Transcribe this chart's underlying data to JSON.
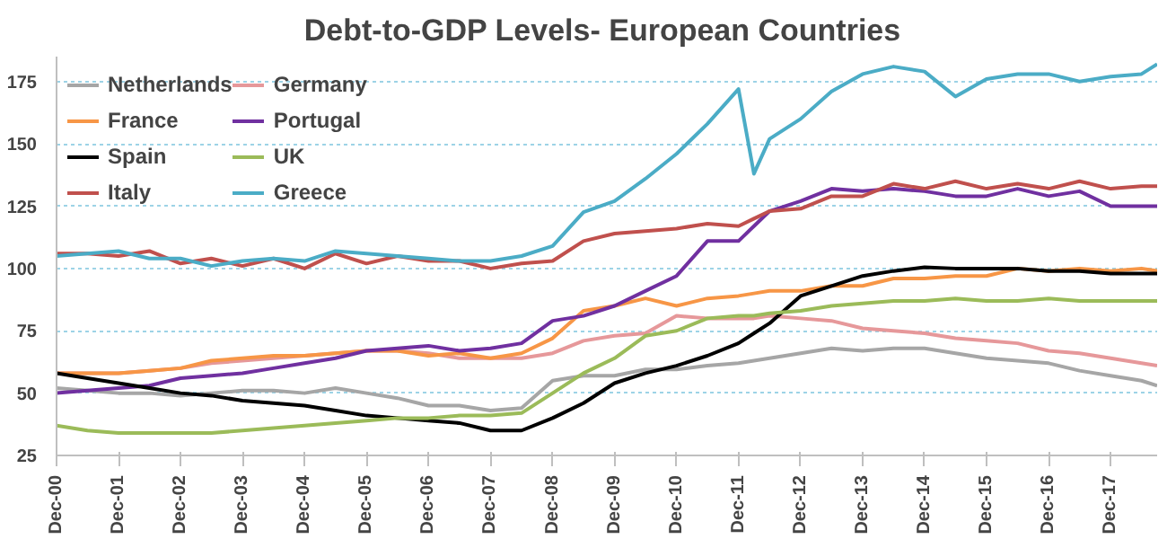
{
  "chart_data": {
    "type": "line",
    "title": "Debt-to-GDP  Levels- European Countries",
    "x": [
      "2000-12",
      "2001-06",
      "2001-12",
      "2002-06",
      "2002-12",
      "2003-06",
      "2003-12",
      "2004-06",
      "2004-12",
      "2005-06",
      "2005-12",
      "2006-06",
      "2006-12",
      "2007-06",
      "2007-12",
      "2008-06",
      "2008-12",
      "2009-06",
      "2009-12",
      "2010-06",
      "2010-12",
      "2011-06",
      "2011-12",
      "2012-03",
      "2012-06",
      "2012-12",
      "2013-06",
      "2013-12",
      "2014-06",
      "2014-12",
      "2015-06",
      "2015-12",
      "2016-06",
      "2016-12",
      "2017-06",
      "2017-12",
      "2018-06",
      "2018-09"
    ],
    "series": [
      {
        "name": "Netherlands",
        "color": "#a6a6a6",
        "values": [
          52,
          51,
          50,
          50,
          49,
          50,
          51,
          51,
          50,
          52,
          50,
          48,
          45,
          45,
          43,
          44,
          55,
          57,
          57,
          59.5,
          59.5,
          61,
          62,
          63,
          64,
          66,
          68,
          67,
          68,
          68,
          66,
          64,
          63,
          62,
          59,
          57,
          55,
          53
        ]
      },
      {
        "name": "Germany",
        "color": "#e6989a",
        "values": [
          58,
          58,
          58,
          59,
          60,
          62,
          63,
          64,
          65,
          66,
          67,
          67,
          66,
          64,
          64,
          64,
          66,
          71,
          73,
          74,
          81,
          80,
          80,
          80,
          81,
          80,
          79,
          76,
          75,
          74,
          72,
          71,
          70,
          67,
          66,
          64,
          62,
          61
        ]
      },
      {
        "name": "France",
        "color": "#f79646",
        "values": [
          58,
          58,
          58,
          59,
          60,
          63,
          64,
          65,
          65,
          66,
          67,
          67,
          65,
          66,
          64,
          66,
          72,
          83,
          85,
          88,
          85,
          88,
          89,
          90,
          91,
          91,
          93,
          93,
          96,
          96,
          97,
          97,
          100,
          99,
          100,
          99,
          100,
          99
        ]
      },
      {
        "name": "Portugal",
        "color": "#7030a0",
        "values": [
          50,
          51,
          52,
          53,
          56,
          57,
          58,
          60,
          62,
          64,
          67,
          68,
          69,
          67,
          68,
          70,
          79,
          81,
          85,
          91,
          97,
          111,
          111,
          117,
          123,
          127,
          132,
          131,
          132,
          131,
          129,
          129,
          132,
          129,
          131,
          125,
          125,
          125
        ]
      },
      {
        "name": "Spain",
        "color": "#000000",
        "values": [
          58,
          56,
          54,
          52,
          50,
          49,
          47,
          46,
          45,
          43,
          41,
          40,
          39,
          38,
          35,
          35,
          40,
          46,
          54,
          58,
          61,
          65,
          70,
          74,
          78,
          89,
          93,
          97,
          99,
          100.5,
          100,
          100,
          100,
          99,
          99,
          98,
          98,
          98
        ]
      },
      {
        "name": "UK",
        "color": "#9bbb59",
        "values": [
          37,
          35,
          34,
          34,
          34,
          34,
          35,
          36,
          37,
          38,
          39,
          40,
          40,
          41,
          41,
          42,
          50,
          58,
          64,
          73,
          75,
          80,
          81,
          81,
          82,
          83,
          85,
          86,
          87,
          87,
          88,
          87,
          87,
          88,
          87,
          87,
          87,
          87
        ]
      },
      {
        "name": "Italy",
        "color": "#c0504d",
        "values": [
          106,
          106,
          105,
          107,
          102,
          104,
          101,
          104,
          100,
          106,
          102,
          105,
          103,
          103,
          100,
          102,
          103,
          111,
          114,
          115,
          116,
          118,
          117,
          120,
          123,
          124,
          129,
          129,
          134,
          132,
          135,
          132,
          134,
          132,
          135,
          132,
          133,
          133
        ]
      },
      {
        "name": "Greece",
        "color": "#4bacc6",
        "values": [
          105,
          106,
          107,
          104,
          104,
          101,
          103,
          104,
          103,
          107,
          106,
          105,
          104,
          103,
          103,
          105,
          109,
          122.6,
          127,
          136,
          146,
          158,
          172,
          138,
          152,
          160,
          171,
          178,
          181,
          179,
          169,
          176,
          178,
          178,
          175,
          177,
          178,
          182
        ]
      }
    ],
    "xlim": [
      "2000-12",
      "2018-09"
    ],
    "xticks": [
      {
        "value": "2000-12",
        "label": "Dec-00"
      },
      {
        "value": "2001-12",
        "label": "Dec-01"
      },
      {
        "value": "2002-12",
        "label": "Dec-02"
      },
      {
        "value": "2003-12",
        "label": "Dec-03"
      },
      {
        "value": "2004-12",
        "label": "Dec-04"
      },
      {
        "value": "2005-12",
        "label": "Dec-05"
      },
      {
        "value": "2006-12",
        "label": "Dec-06"
      },
      {
        "value": "2007-12",
        "label": "Dec-07"
      },
      {
        "value": "2008-12",
        "label": "Dec-08"
      },
      {
        "value": "2009-12",
        "label": "Dec-09"
      },
      {
        "value": "2010-12",
        "label": "Dec-10"
      },
      {
        "value": "2011-12",
        "label": "Dec-11"
      },
      {
        "value": "2012-12",
        "label": "Dec-12"
      },
      {
        "value": "2013-12",
        "label": "Dec-13"
      },
      {
        "value": "2014-12",
        "label": "Dec-14"
      },
      {
        "value": "2015-12",
        "label": "Dec-15"
      },
      {
        "value": "2016-12",
        "label": "Dec-16"
      },
      {
        "value": "2017-12",
        "label": "Dec-17"
      }
    ],
    "ylim": [
      25,
      185
    ],
    "yticks": [
      25,
      50,
      75,
      100,
      125,
      150,
      175
    ],
    "grid": "y",
    "legend": "top left",
    "marker": "none",
    "line_style": "solid"
  }
}
